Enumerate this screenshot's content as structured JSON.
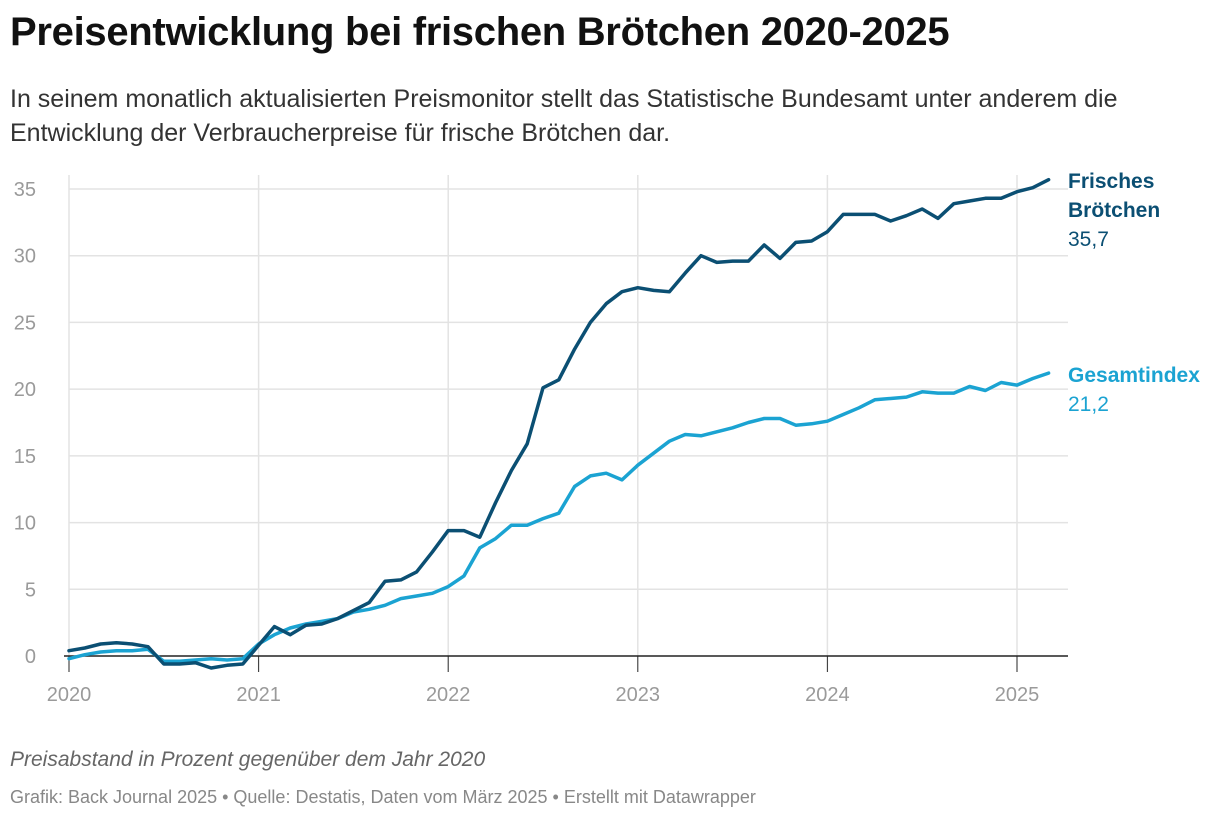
{
  "header": {
    "title": "Preisentwicklung bei frischen Brötchen 2020-2025",
    "subtitle": "In seinem monatlich aktualisierten Preismonitor stellt das Statistische Bundesamt unter anderem die Entwicklung der Verbraucherpreise für frische Brötchen dar."
  },
  "footer": {
    "note": "Preisabstand in Prozent gegenüber dem Jahr 2020",
    "source": "Grafik: Back Journal 2025 • Quelle: Destatis, Daten vom März 2025 • Erstellt mit Datawrapper"
  },
  "chart_data": {
    "type": "line",
    "title": "Preisentwicklung bei frischen Brötchen 2020-2025",
    "xlabel": "",
    "ylabel": "",
    "x_start": "2020-01",
    "x_end": "2025-03",
    "xlim": [
      2020.0,
      2025.2
    ],
    "ylim": [
      -1.5,
      36
    ],
    "y_ticks": [
      0,
      5,
      10,
      15,
      20,
      25,
      30,
      35
    ],
    "x_ticks": [
      "2020",
      "2021",
      "2022",
      "2023",
      "2024",
      "2025"
    ],
    "grid": true,
    "legend": "direct labels at line ends (right)",
    "series": [
      {
        "name": "Frisches Brötchen",
        "label_lines": [
          "Frisches",
          "Brötchen"
        ],
        "end_label": "35,7",
        "color": "#0b4f73",
        "values": [
          0.4,
          0.6,
          0.9,
          1.0,
          0.9,
          0.7,
          -0.6,
          -0.6,
          -0.5,
          -0.9,
          -0.7,
          -0.6,
          0.8,
          2.2,
          1.6,
          2.3,
          2.4,
          2.8,
          3.4,
          4.0,
          5.6,
          5.7,
          6.3,
          7.8,
          9.4,
          9.4,
          8.9,
          11.5,
          13.9,
          15.9,
          20.1,
          20.7,
          23.0,
          25.0,
          26.4,
          27.3,
          27.6,
          27.4,
          27.3,
          28.7,
          30.0,
          29.5,
          29.6,
          29.6,
          30.8,
          29.8,
          31.0,
          31.1,
          31.8,
          33.1,
          33.1,
          33.1,
          32.6,
          33.0,
          33.5,
          32.8,
          33.9,
          34.1,
          34.3,
          34.3,
          34.8,
          35.1,
          35.7
        ]
      },
      {
        "name": "Gesamtindex",
        "label_lines": [
          "Gesamtindex"
        ],
        "end_label": "21,2",
        "color": "#1ba3d2",
        "values": [
          -0.2,
          0.1,
          0.3,
          0.4,
          0.4,
          0.5,
          -0.4,
          -0.4,
          -0.3,
          -0.2,
          -0.3,
          -0.2,
          0.9,
          1.6,
          2.1,
          2.4,
          2.6,
          2.8,
          3.3,
          3.5,
          3.8,
          4.3,
          4.5,
          4.7,
          5.2,
          6.0,
          8.1,
          8.8,
          9.8,
          9.8,
          10.3,
          10.7,
          12.7,
          13.5,
          13.7,
          13.2,
          14.3,
          15.2,
          16.1,
          16.6,
          16.5,
          16.8,
          17.1,
          17.5,
          17.8,
          17.8,
          17.3,
          17.4,
          17.6,
          18.1,
          18.6,
          19.2,
          19.3,
          19.4,
          19.8,
          19.7,
          19.7,
          20.2,
          19.9,
          20.5,
          20.3,
          20.8,
          21.2
        ]
      }
    ]
  }
}
